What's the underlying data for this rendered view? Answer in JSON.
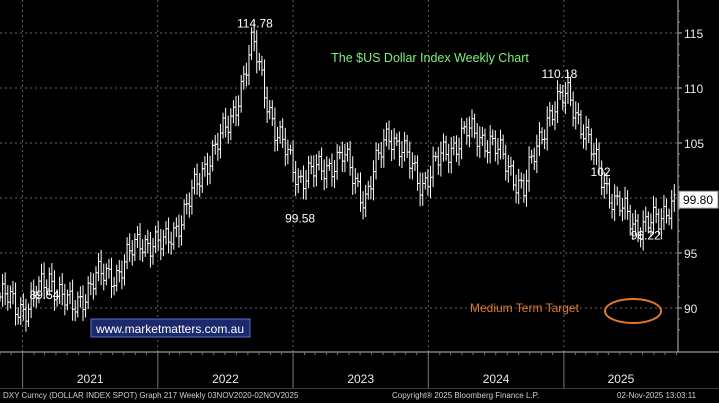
{
  "chart_data": {
    "type": "candlestick",
    "title": "The $US Dollar Index Weekly Chart",
    "watermark": "www.marketmatters.com.au",
    "ylim": [
      86,
      118
    ],
    "y_ticks": [
      90,
      95,
      100,
      105,
      110,
      115
    ],
    "y_tick_labels": [
      "90",
      "95",
      "100",
      "105",
      "110",
      "115"
    ],
    "x_tick_labels": [
      "2021",
      "2022",
      "2023",
      "2024",
      "2025"
    ],
    "last_price_label": "99.80",
    "annotations": {
      "high_2022": "114.78",
      "low_2023": "99.58",
      "high_2024": "110.18",
      "level_2025": "102",
      "low_2025": "96.22",
      "low_2021": "89.54",
      "target_label": "Medium Term Target"
    },
    "series_weekly_close": [
      {
        "date": "2020-11",
        "value": 91.0
      },
      {
        "date": "2020-12",
        "value": 90.0
      },
      {
        "date": "2021-01",
        "value": 90.2
      },
      {
        "date": "2021-03",
        "value": 92.8
      },
      {
        "date": "2021-05",
        "value": 89.8
      },
      {
        "date": "2021-07",
        "value": 92.7
      },
      {
        "date": "2021-09",
        "value": 93.2
      },
      {
        "date": "2021-11",
        "value": 96.2
      },
      {
        "date": "2022-01",
        "value": 95.6
      },
      {
        "date": "2022-03",
        "value": 98.7
      },
      {
        "date": "2022-05",
        "value": 103.5
      },
      {
        "date": "2022-07",
        "value": 106.8
      },
      {
        "date": "2022-09",
        "value": 114.1
      },
      {
        "date": "2022-11",
        "value": 106.0
      },
      {
        "date": "2023-01",
        "value": 101.9
      },
      {
        "date": "2023-03",
        "value": 102.5
      },
      {
        "date": "2023-05",
        "value": 103.8
      },
      {
        "date": "2023-07",
        "value": 99.9
      },
      {
        "date": "2023-09",
        "value": 106.2
      },
      {
        "date": "2023-12",
        "value": 101.3
      },
      {
        "date": "2024-02",
        "value": 104.1
      },
      {
        "date": "2024-04",
        "value": 106.0
      },
      {
        "date": "2024-06",
        "value": 105.2
      },
      {
        "date": "2024-09",
        "value": 100.8
      },
      {
        "date": "2024-11",
        "value": 107.3
      },
      {
        "date": "2025-01",
        "value": 109.6
      },
      {
        "date": "2025-03",
        "value": 104.3
      },
      {
        "date": "2025-05",
        "value": 99.7
      },
      {
        "date": "2025-07",
        "value": 97.5
      },
      {
        "date": "2025-09",
        "value": 97.8
      },
      {
        "date": "2025-10",
        "value": 99.8
      }
    ],
    "grid": true,
    "axis_position": "right"
  },
  "footer": {
    "left": "DXY Curncy (DOLLAR INDEX SPOT) Graph 217 Weekly 03NOV2020-02NOV2025",
    "center": "Copyright® 2025 Bloomberg Finance L.P.",
    "right": "02-Nov-2025 13:03:11"
  },
  "colors": {
    "background": "#000000",
    "candles": "#ffffff",
    "title": "#7cf07c",
    "watermark_bg": "#1a2a6c",
    "target_text": "#e07a2a",
    "target_ellipse": "#e07a2a",
    "last_price_box": "#ffffff"
  }
}
